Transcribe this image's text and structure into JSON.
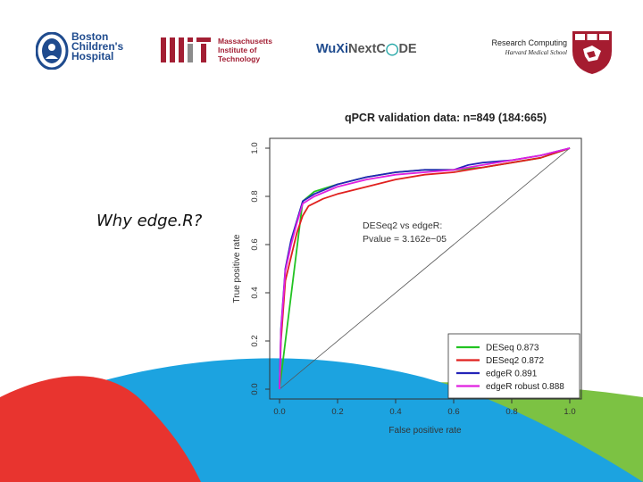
{
  "logos": {
    "boston": [
      "Boston",
      "Children's",
      "Hospital"
    ],
    "mit": [
      "Massachusetts",
      "Institute of",
      "Technology"
    ],
    "wuxi": {
      "part1": "WuXi",
      "part2": "NextC",
      "part3": "DE"
    }
  },
  "header": {
    "title": "Research Computing",
    "subtitle": "Harvard Medical School"
  },
  "slide": {
    "title": "Why edge.R?"
  },
  "colors": {
    "red": "#e8342f",
    "blue": "#1ca3e0",
    "green": "#7cc243",
    "harvard": "#a51c30",
    "mit": "#a31f34",
    "boston": "#1f4b8e"
  },
  "chart_data": {
    "type": "line",
    "title": "qPCR validation data: n=849 (184:665)",
    "xlabel": "False positive rate",
    "ylabel": "True positive rate",
    "xlim": [
      0,
      1
    ],
    "ylim": [
      0,
      1
    ],
    "xticks": [
      "0.0",
      "0.2",
      "0.4",
      "0.6",
      "0.8",
      "1.0"
    ],
    "yticks": [
      "0.0",
      "0.2",
      "0.4",
      "0.6",
      "0.8",
      "1.0"
    ],
    "annotation": [
      "DESeq2 vs edgeR:",
      "Pvalue = 3.162e−05"
    ],
    "legend_position": "bottom-right",
    "diagonal": true,
    "series": [
      {
        "name": "DESeq",
        "auc": "0.873",
        "color": "#22c322",
        "x": [
          0,
          0.005,
          0.08,
          0.12,
          0.2,
          0.3,
          0.4,
          0.5,
          0.6,
          0.7,
          0.8,
          0.9,
          0.95,
          1.0
        ],
        "y": [
          0,
          0.05,
          0.78,
          0.82,
          0.85,
          0.88,
          0.9,
          0.91,
          0.91,
          0.92,
          0.94,
          0.96,
          0.98,
          1.0
        ]
      },
      {
        "name": "DESeq2",
        "auc": "0.872",
        "color": "#e0201e",
        "x": [
          0,
          0.005,
          0.02,
          0.04,
          0.06,
          0.08,
          0.1,
          0.15,
          0.2,
          0.3,
          0.4,
          0.5,
          0.6,
          0.7,
          0.8,
          0.9,
          1.0
        ],
        "y": [
          0,
          0.2,
          0.45,
          0.55,
          0.65,
          0.72,
          0.76,
          0.79,
          0.81,
          0.84,
          0.87,
          0.89,
          0.9,
          0.92,
          0.94,
          0.96,
          1.0
        ]
      },
      {
        "name": "edgeR",
        "auc": "0.891",
        "color": "#2424b8",
        "x": [
          0,
          0.005,
          0.02,
          0.04,
          0.06,
          0.08,
          0.12,
          0.2,
          0.3,
          0.4,
          0.5,
          0.6,
          0.65,
          0.7,
          0.8,
          0.9,
          1.0
        ],
        "y": [
          0,
          0.25,
          0.5,
          0.62,
          0.7,
          0.78,
          0.81,
          0.85,
          0.88,
          0.9,
          0.91,
          0.91,
          0.93,
          0.94,
          0.95,
          0.97,
          1.0
        ]
      },
      {
        "name": "edgeR robust",
        "auc": "0.888",
        "color": "#e020e0",
        "x": [
          0,
          0.005,
          0.02,
          0.04,
          0.06,
          0.08,
          0.12,
          0.2,
          0.3,
          0.4,
          0.5,
          0.6,
          0.7,
          0.8,
          0.9,
          1.0
        ],
        "y": [
          0,
          0.24,
          0.49,
          0.6,
          0.69,
          0.77,
          0.8,
          0.84,
          0.87,
          0.89,
          0.9,
          0.91,
          0.93,
          0.95,
          0.97,
          1.0
        ]
      }
    ]
  }
}
